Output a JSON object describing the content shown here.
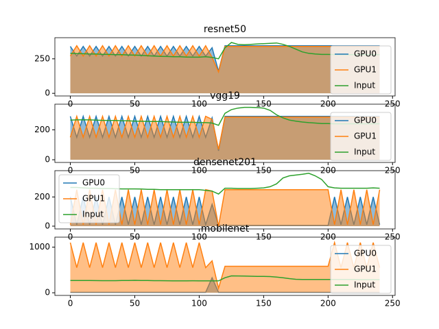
{
  "chart_data": [
    {
      "type": "line",
      "title": "resnet50",
      "legend": "lower right",
      "x": [
        0,
        5,
        10,
        15,
        20,
        25,
        30,
        35,
        40,
        45,
        50,
        55,
        60,
        65,
        70,
        75,
        80,
        85,
        90,
        95,
        100,
        105,
        110,
        115,
        120,
        125,
        130,
        135,
        140,
        145,
        150,
        155,
        160,
        165,
        170,
        175,
        180,
        185,
        190,
        195,
        200,
        205,
        210,
        215,
        220,
        225,
        230,
        235,
        240
      ],
      "xlim": [
        -12,
        252
      ],
      "xticks": [
        0,
        50,
        100,
        150,
        200,
        250
      ],
      "ylim": [
        -19,
        403
      ],
      "yticks": [
        0,
        250
      ],
      "series": [
        {
          "name": "GPU0",
          "color": "#1f77b4",
          "filled": true,
          "values": [
            340,
            270,
            340,
            270,
            340,
            270,
            340,
            270,
            340,
            270,
            340,
            270,
            340,
            270,
            340,
            270,
            340,
            270,
            340,
            270,
            340,
            270,
            330,
            160,
            345,
            345,
            345,
            345,
            345,
            345,
            345,
            345,
            345,
            345,
            345,
            345,
            345,
            345,
            345,
            345,
            345,
            345,
            345,
            345,
            345,
            345,
            345,
            345,
            345
          ]
        },
        {
          "name": "GPU1",
          "color": "#ff7f0e",
          "filled": true,
          "values": [
            270,
            345,
            270,
            345,
            270,
            345,
            270,
            345,
            270,
            345,
            270,
            345,
            270,
            345,
            270,
            345,
            270,
            345,
            270,
            345,
            270,
            345,
            260,
            155,
            340,
            340,
            340,
            340,
            340,
            340,
            340,
            340,
            340,
            340,
            340,
            340,
            340,
            340,
            340,
            340,
            340,
            340,
            340,
            340,
            340,
            340,
            340,
            340,
            340
          ]
        },
        {
          "name": "Input",
          "color": "#2ca02c",
          "filled": false,
          "values": [
            290,
            288,
            287,
            285,
            285,
            283,
            282,
            280,
            280,
            278,
            277,
            275,
            272,
            270,
            268,
            267,
            265,
            265,
            263,
            262,
            262,
            265,
            260,
            250,
            330,
            368,
            355,
            352,
            355,
            358,
            360,
            362,
            365,
            355,
            340,
            320,
            300,
            290,
            285,
            282,
            282,
            281,
            280,
            280,
            280,
            280,
            280,
            280,
            280
          ]
        }
      ]
    },
    {
      "type": "line",
      "title": "vgg19",
      "legend": "lower right",
      "x": [
        0,
        5,
        10,
        15,
        20,
        25,
        30,
        35,
        40,
        45,
        50,
        55,
        60,
        65,
        70,
        75,
        80,
        85,
        90,
        95,
        100,
        105,
        110,
        115,
        120,
        125,
        130,
        135,
        140,
        145,
        150,
        155,
        160,
        165,
        170,
        175,
        180,
        185,
        190,
        195,
        200,
        205,
        210,
        215,
        220,
        225,
        230,
        235,
        240
      ],
      "xlim": [
        -12,
        252
      ],
      "xticks": [
        0,
        50,
        100,
        150,
        200,
        250
      ],
      "ylim": [
        -18,
        371
      ],
      "yticks": [
        0,
        200
      ],
      "series": [
        {
          "name": "GPU0",
          "color": "#1f77b4",
          "filled": true,
          "values": [
            290,
            150,
            290,
            150,
            290,
            150,
            290,
            150,
            290,
            150,
            290,
            150,
            290,
            150,
            290,
            150,
            290,
            150,
            290,
            150,
            290,
            150,
            280,
            60,
            290,
            290,
            290,
            290,
            290,
            290,
            290,
            290,
            290,
            290,
            290,
            290,
            290,
            290,
            290,
            290,
            290,
            290,
            290,
            290,
            290,
            290,
            290,
            290,
            290
          ]
        },
        {
          "name": "GPU1",
          "color": "#ff7f0e",
          "filled": true,
          "values": [
            150,
            290,
            150,
            290,
            150,
            290,
            150,
            290,
            150,
            290,
            150,
            290,
            150,
            290,
            150,
            290,
            150,
            290,
            150,
            290,
            150,
            290,
            270,
            70,
            285,
            285,
            285,
            285,
            285,
            285,
            285,
            285,
            285,
            285,
            285,
            285,
            285,
            285,
            285,
            285,
            285,
            285,
            285,
            285,
            285,
            285,
            285,
            285,
            285
          ]
        },
        {
          "name": "Input",
          "color": "#2ca02c",
          "filled": false,
          "values": [
            265,
            266,
            267,
            266,
            265,
            263,
            262,
            262,
            260,
            260,
            258,
            257,
            256,
            255,
            255,
            253,
            252,
            250,
            250,
            250,
            248,
            248,
            245,
            230,
            310,
            335,
            345,
            350,
            350,
            348,
            345,
            330,
            300,
            280,
            265,
            258,
            252,
            248,
            245,
            242,
            242,
            240,
            240,
            240,
            240,
            240,
            240,
            240,
            240
          ]
        }
      ]
    },
    {
      "type": "line",
      "title": "densenet201",
      "legend": "upper left",
      "x": [
        0,
        5,
        10,
        15,
        20,
        25,
        30,
        35,
        40,
        45,
        50,
        55,
        60,
        65,
        70,
        75,
        80,
        85,
        90,
        95,
        100,
        105,
        110,
        115,
        120,
        125,
        130,
        135,
        140,
        145,
        150,
        155,
        160,
        165,
        170,
        175,
        180,
        185,
        190,
        195,
        200,
        205,
        210,
        215,
        220,
        225,
        230,
        235,
        240
      ],
      "xlim": [
        -12,
        252
      ],
      "xticks": [
        0,
        50,
        100,
        150,
        200,
        250
      ],
      "ylim": [
        -19,
        380
      ],
      "yticks": [
        0,
        200
      ],
      "series": [
        {
          "name": "GPU0",
          "color": "#1f77b4",
          "filled": true,
          "values": [
            200,
            10,
            200,
            10,
            200,
            10,
            200,
            10,
            200,
            10,
            200,
            10,
            200,
            10,
            200,
            10,
            200,
            10,
            200,
            10,
            200,
            10,
            150,
            5,
            5,
            5,
            5,
            5,
            5,
            5,
            5,
            5,
            5,
            5,
            5,
            5,
            5,
            5,
            5,
            5,
            5,
            200,
            10,
            200,
            10,
            200,
            10,
            200,
            10
          ]
        },
        {
          "name": "GPU1",
          "color": "#ff7f0e",
          "filled": true,
          "values": [
            10,
            250,
            10,
            250,
            10,
            250,
            10,
            250,
            10,
            250,
            10,
            250,
            10,
            250,
            10,
            250,
            10,
            250,
            10,
            250,
            10,
            250,
            240,
            0,
            250,
            250,
            250,
            250,
            250,
            250,
            250,
            250,
            250,
            250,
            250,
            250,
            250,
            250,
            250,
            250,
            250,
            10,
            250,
            10,
            250,
            10,
            250,
            10,
            250
          ]
        },
        {
          "name": "Input",
          "color": "#2ca02c",
          "filled": false,
          "values": [
            265,
            265,
            262,
            260,
            260,
            258,
            258,
            256,
            255,
            255,
            255,
            254,
            252,
            252,
            250,
            250,
            250,
            250,
            250,
            250,
            250,
            245,
            240,
            220,
            260,
            260,
            258,
            258,
            258,
            260,
            262,
            270,
            290,
            330,
            345,
            350,
            355,
            362,
            345,
            320,
            270,
            262,
            260,
            260,
            260,
            260,
            260,
            262,
            260
          ]
        }
      ]
    },
    {
      "type": "line",
      "title": "mobilenet",
      "legend": "lower right",
      "x": [
        0,
        5,
        10,
        15,
        20,
        25,
        30,
        35,
        40,
        45,
        50,
        55,
        60,
        65,
        70,
        75,
        80,
        85,
        90,
        95,
        100,
        105,
        110,
        115,
        120,
        125,
        130,
        135,
        140,
        145,
        150,
        155,
        160,
        165,
        170,
        175,
        180,
        185,
        190,
        195,
        200,
        205,
        210,
        215,
        220,
        225,
        230,
        235,
        240
      ],
      "xlim": [
        -12,
        252
      ],
      "xticks": [
        0,
        50,
        100,
        150,
        200,
        250
      ],
      "ylim": [
        -58,
        1219
      ],
      "yticks": [
        0,
        1000
      ],
      "series": [
        {
          "name": "GPU0",
          "color": "#1f77b4",
          "filled": true,
          "values": [
            10,
            10,
            10,
            10,
            10,
            10,
            10,
            10,
            10,
            10,
            10,
            10,
            10,
            10,
            10,
            10,
            10,
            10,
            10,
            10,
            10,
            10,
            330,
            10,
            10,
            10,
            10,
            10,
            10,
            10,
            10,
            10,
            10,
            10,
            10,
            10,
            10,
            10,
            10,
            10,
            10,
            10,
            10,
            10,
            10,
            10,
            10,
            10,
            10
          ]
        },
        {
          "name": "GPU1",
          "color": "#ff7f0e",
          "filled": true,
          "values": [
            1100,
            550,
            1100,
            550,
            1100,
            550,
            1100,
            550,
            1100,
            550,
            1100,
            550,
            1100,
            550,
            1100,
            550,
            1100,
            550,
            1100,
            550,
            1100,
            550,
            700,
            100,
            580,
            580,
            580,
            580,
            580,
            580,
            580,
            580,
            580,
            580,
            580,
            580,
            580,
            580,
            580,
            580,
            580,
            1100,
            550,
            1100,
            550,
            1100,
            550,
            1100,
            550
          ]
        },
        {
          "name": "Input",
          "color": "#2ca02c",
          "filled": false,
          "values": [
            270,
            270,
            268,
            268,
            266,
            265,
            265,
            265,
            268,
            270,
            272,
            270,
            268,
            265,
            265,
            263,
            262,
            262,
            262,
            263,
            262,
            262,
            260,
            260,
            330,
            370,
            368,
            365,
            362,
            360,
            358,
            355,
            345,
            330,
            310,
            295,
            290,
            290,
            290,
            292,
            292,
            292,
            290,
            290,
            290,
            288,
            288,
            288,
            288
          ]
        }
      ]
    }
  ]
}
